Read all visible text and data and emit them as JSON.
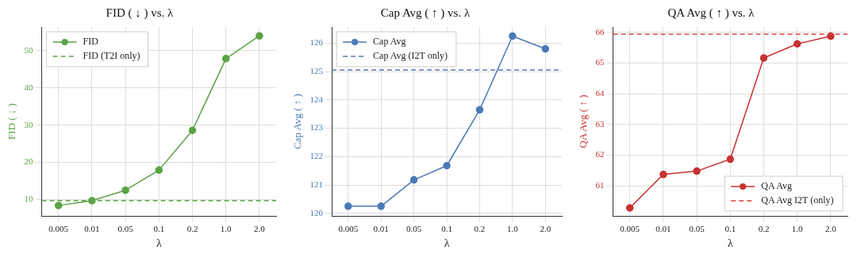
{
  "chart_data": [
    {
      "type": "line",
      "title": "FID ( ↓ ) vs. λ",
      "xlabel": "λ",
      "ylabel": "FID ( ↓ )",
      "categories": [
        "0.005",
        "0.01",
        "0.05",
        "0.1",
        "0.2",
        "1.0",
        "2.0"
      ],
      "series": [
        {
          "name": "FID",
          "color": "#5aa345",
          "values": [
            8.4,
            9.7,
            12.5,
            17.9,
            28.6,
            47.9,
            54.0
          ]
        }
      ],
      "ref_lines": [
        {
          "axis": "y",
          "value": 9.7,
          "label": "FID (T2I only)",
          "color": "#5aa345",
          "line_style": "dashed"
        }
      ],
      "ylim": [
        5.6,
        56.4
      ],
      "yticks": [
        10,
        20,
        30,
        40,
        50
      ],
      "grid": true,
      "legend": "top left",
      "marker": "circle",
      "line_style": "solid"
    },
    {
      "type": "line",
      "title": "Cap Avg ( ↑ ) vs. λ",
      "xlabel": "λ",
      "ylabel": "Cap Avg ( ↑ )",
      "categories": [
        "0.005",
        "0.01",
        "0.05",
        "0.1",
        "0.2",
        "1.0",
        "2.0"
      ],
      "series": [
        {
          "name": "Cap Avg",
          "color": "#4a7ab5",
          "values": [
            120.25,
            120.25,
            121.18,
            121.68,
            123.65,
            126.25,
            125.8
          ]
        }
      ],
      "ref_lines": [
        {
          "axis": "y",
          "value": 125.05,
          "label": "Cap Avg (I2T only)",
          "color": "#4a7ab5",
          "line_style": "dashed"
        }
      ],
      "ylim": [
        119.91,
        126.57
      ],
      "yticks": [
        120,
        121,
        122,
        123,
        124,
        125,
        126
      ],
      "grid": true,
      "legend": "top left",
      "marker": "circle",
      "line_style": "solid"
    },
    {
      "type": "line",
      "title": "QA Avg ( ↑ ) vs. λ",
      "xlabel": "λ",
      "ylabel": "QA Avg ( ↑ )",
      "categories": [
        "0.005",
        "0.01",
        "0.05",
        "0.1",
        "0.2",
        "1.0",
        "2.0"
      ],
      "series": [
        {
          "name": "QA Avg",
          "color": "#c83232",
          "values": [
            60.28,
            61.37,
            61.48,
            61.87,
            65.17,
            65.63,
            65.88
          ]
        }
      ],
      "ref_lines": [
        {
          "axis": "y",
          "value": 65.95,
          "label": "QA Avg I2T (only)",
          "color": "#e03c3c",
          "line_style": "dashed"
        }
      ],
      "ylim": [
        60.02,
        66.18
      ],
      "yticks": [
        61,
        62,
        63,
        64,
        65,
        66
      ],
      "grid": true,
      "legend": "bottom right",
      "marker": "circle",
      "line_style": "solid"
    }
  ]
}
